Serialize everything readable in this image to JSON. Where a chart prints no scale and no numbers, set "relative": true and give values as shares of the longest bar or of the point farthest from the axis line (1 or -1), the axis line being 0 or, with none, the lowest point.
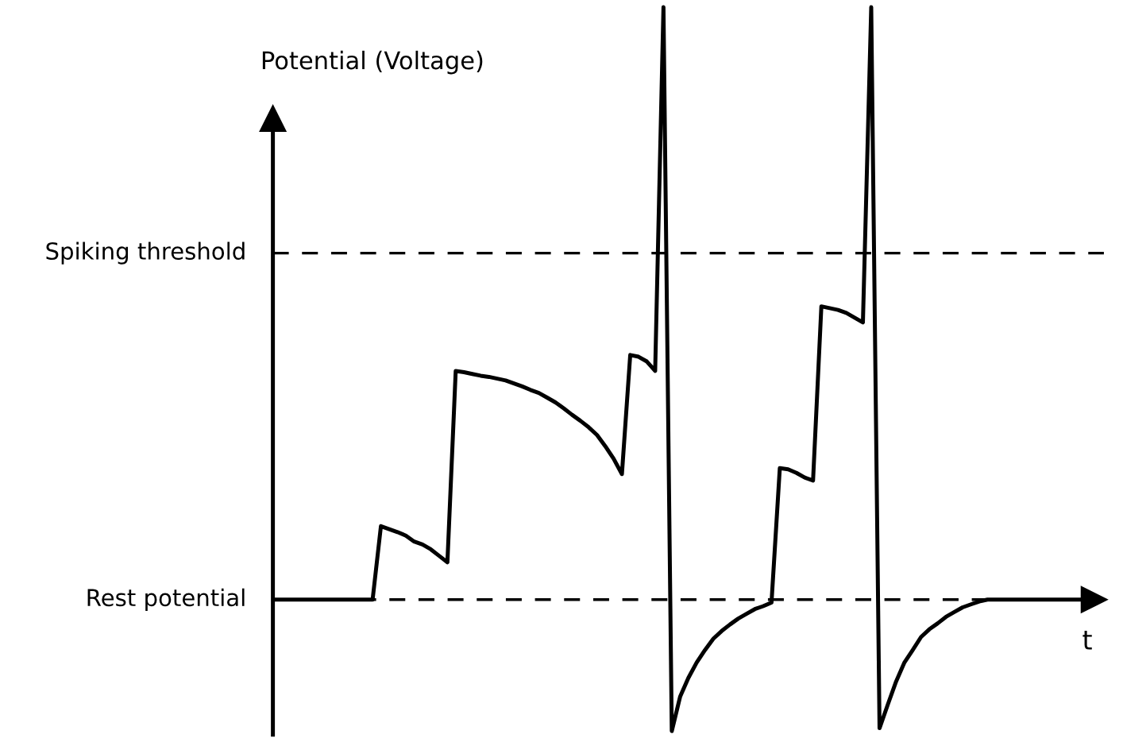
{
  "chart_data": {
    "type": "line",
    "relative": true,
    "xlabel": "t",
    "ylabel": "Potential (Voltage)",
    "line_style": "solid",
    "marker": "none",
    "categories": [
      null,
      null,
      null,
      null,
      null,
      null,
      null,
      null,
      null,
      null,
      null,
      null,
      null,
      null,
      null,
      null,
      null,
      null,
      null,
      null,
      null,
      null,
      null,
      null,
      null,
      null,
      null,
      null,
      null,
      null,
      null,
      null,
      null,
      null,
      null,
      null,
      null,
      null,
      null,
      null,
      null,
      null,
      null,
      null,
      null,
      null,
      null,
      null,
      null,
      null,
      null,
      null,
      null,
      null,
      null,
      null,
      null,
      null,
      null,
      null,
      null,
      null,
      null,
      null,
      null,
      null,
      null,
      null,
      null,
      null,
      null,
      null,
      null,
      null,
      null,
      null,
      null,
      null,
      null,
      null,
      null,
      null,
      null,
      null,
      null,
      null,
      null,
      null,
      null,
      null,
      null,
      null,
      null,
      null,
      null,
      null,
      null,
      null
    ],
    "series": [
      {
        "color": "#000000",
        "values": [
          0,
          0,
          0,
          0,
          0,
          0,
          0,
          0,
          0,
          0,
          0,
          0,
          0,
          0.124,
          0.119,
          0.114,
          0.108,
          0.098,
          0.093,
          0.085,
          0.074,
          0.063,
          0.386,
          0.384,
          0.381,
          0.378,
          0.376,
          0.373,
          0.37,
          0.365,
          0.36,
          0.354,
          0.349,
          0.341,
          0.333,
          0.323,
          0.312,
          0.302,
          0.291,
          0.278,
          0.259,
          0.238,
          0.212,
          0.413,
          0.41,
          0.402,
          0.386,
          1,
          -0.222,
          -0.164,
          -0.132,
          -0.106,
          -0.085,
          -0.066,
          -0.053,
          -0.042,
          -0.032,
          -0.024,
          -0.016,
          -0.011,
          -0.005,
          0.222,
          0.22,
          0.214,
          0.206,
          0.201,
          0.495,
          0.492,
          0.489,
          0.484,
          0.476,
          0.468,
          1,
          -0.217,
          -0.177,
          -0.138,
          -0.106,
          -0.085,
          -0.063,
          -0.05,
          -0.04,
          -0.029,
          -0.021,
          -0.013,
          -0.008,
          -0.003,
          0,
          0,
          0,
          0,
          0,
          0,
          0,
          0,
          0,
          0,
          0,
          0
        ]
      }
    ],
    "ref_lines": [
      {
        "axis": "y",
        "value": 0.585,
        "label": "Spiking threshold",
        "line_style": "dashed",
        "color": "#000000"
      },
      {
        "axis": "y",
        "value": 0,
        "label": "Rest potential",
        "line_style": "dashed",
        "color": "#000000"
      }
    ]
  }
}
